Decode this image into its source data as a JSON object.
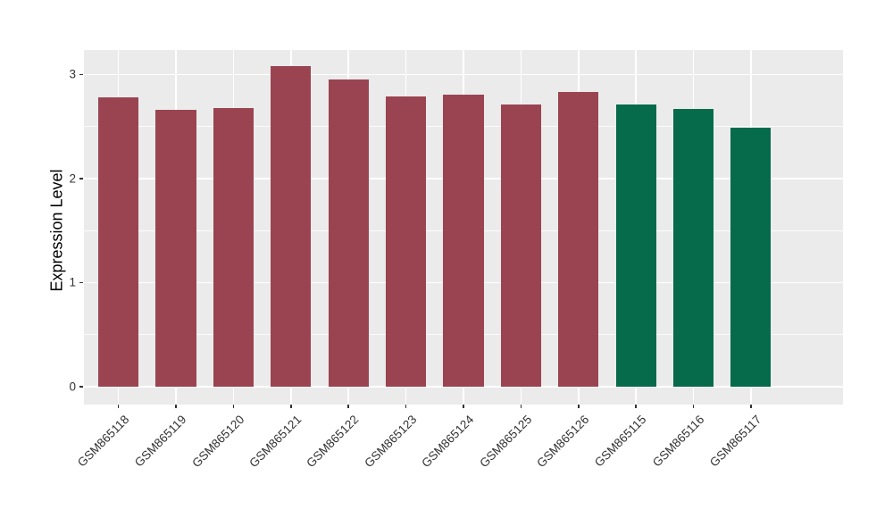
{
  "chart_data": {
    "type": "bar",
    "title": "",
    "xlabel": "",
    "ylabel": "Expression Level",
    "categories": [
      "GSM865118",
      "GSM865119",
      "GSM865120",
      "GSM865121",
      "GSM865122",
      "GSM865123",
      "GSM865124",
      "GSM865125",
      "GSM865126",
      "GSM865115",
      "GSM865116",
      "GSM865117"
    ],
    "values": [
      2.78,
      2.66,
      2.68,
      3.08,
      2.95,
      2.79,
      2.81,
      2.71,
      2.83,
      2.71,
      2.67,
      2.49
    ],
    "groups": [
      "red",
      "red",
      "red",
      "red",
      "red",
      "red",
      "red",
      "red",
      "red",
      "green",
      "green",
      "green"
    ],
    "colors": {
      "red": "#9B4451",
      "green": "#066B4B"
    },
    "yticks": [
      0,
      1,
      2,
      3
    ],
    "ytick_labels": [
      "0",
      "1",
      "2",
      "3"
    ],
    "minor_ticks": [
      0.5,
      1.5,
      2.5
    ],
    "axis_range": [
      -0.172,
      3.236
    ],
    "bar_width_fraction": 0.7,
    "grid": true,
    "legend": "none",
    "panel_bg": "#EBEBEB",
    "gridline_color": "#FFFFFF",
    "tick_text_color": "#333333"
  }
}
